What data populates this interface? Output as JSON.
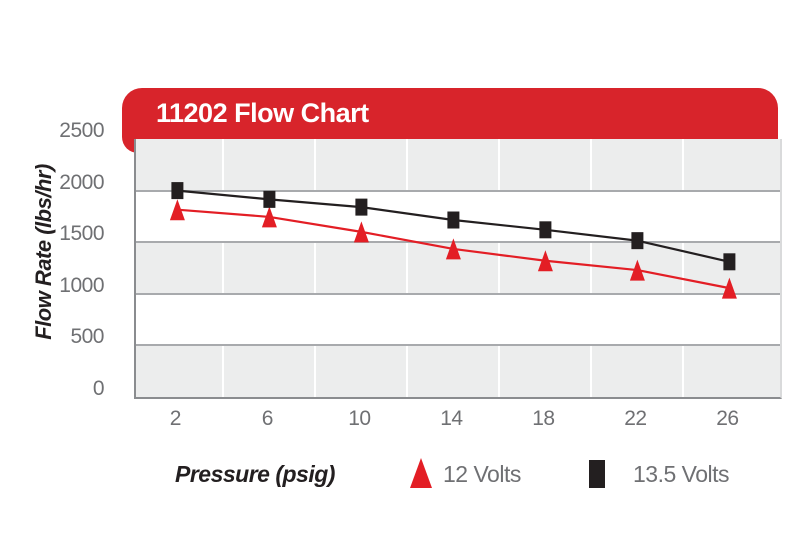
{
  "header": {
    "title": "11202 Flow Chart",
    "bg_color": "#d8242b",
    "text_color": "#ffffff"
  },
  "chart_data": {
    "type": "line",
    "title": "11202 Flow Chart",
    "xlabel": "Pressure (psig)",
    "ylabel": "Flow Rate (lbs/hr)",
    "x": [
      2,
      6,
      10,
      14,
      18,
      22,
      26
    ],
    "series": [
      {
        "name": "12 Volts",
        "marker": "triangle",
        "color": "#e31e25",
        "values": [
          1815,
          1745,
          1600,
          1435,
          1320,
          1230,
          1055
        ]
      },
      {
        "name": "13.5 Volts",
        "marker": "square",
        "color": "#231f20",
        "values": [
          2000,
          1915,
          1840,
          1715,
          1620,
          1515,
          1310
        ]
      }
    ],
    "xlim": [
      0.2,
      28.2
    ],
    "ylim": [
      0,
      2500
    ],
    "x_ticks": [
      2,
      6,
      10,
      14,
      18,
      22,
      26
    ],
    "x_tick_labels": [
      "2",
      "6",
      "10",
      "14",
      "18",
      "22",
      "26"
    ],
    "y_ticks": [
      0,
      500,
      1000,
      1500,
      2000,
      2500
    ],
    "y_tick_labels": [
      "0",
      "500",
      "1000",
      "1500",
      "2000",
      "2500"
    ],
    "h_gridlines": [
      500,
      1000,
      1500,
      2000
    ],
    "v_gridlines": [
      4,
      8,
      12,
      16,
      20,
      24
    ],
    "band_colors": [
      "#eceded",
      "#ffffff",
      "#eceded",
      "#ffffff",
      "#eceded"
    ],
    "legend_position": "bottom"
  },
  "axes": {
    "x_title": "Pressure (psig)",
    "y_title": "Flow Rate (lbs/hr)"
  },
  "legend": {
    "items": [
      {
        "label": "12 Volts",
        "marker": "triangle",
        "color": "#e31e25"
      },
      {
        "label": "13.5 Volts",
        "marker": "square",
        "color": "#231f20"
      }
    ]
  },
  "colors": {
    "header_red": "#d8242b",
    "series_red": "#e31e25",
    "series_black": "#231f20",
    "band_gray": "#eceded",
    "h_gridline": "#a8aaad",
    "v_gridline": "#ffffff",
    "axis_line": "#8a8c8f",
    "right_edge": "#d9dadb",
    "tick_text": "#6f7073",
    "axis_title_text": "#231f20"
  }
}
